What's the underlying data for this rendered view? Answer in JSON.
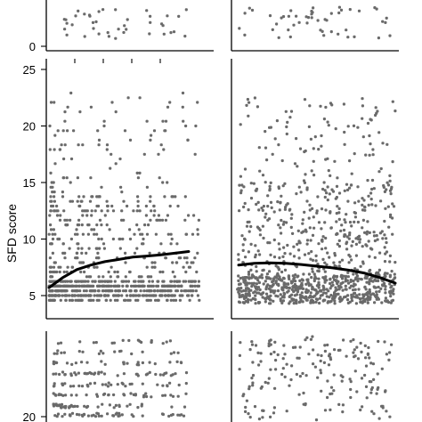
{
  "chart_data": {
    "type": "scatter",
    "ylabel": "SFD score",
    "grid": false,
    "panels": [
      {
        "id": "top-left",
        "y_tick_labels": [
          "0"
        ],
        "y_ticks": [
          0
        ],
        "point_count": 40,
        "y_value_range": [
          0.6,
          4.2
        ]
      },
      {
        "id": "top-right",
        "y_tick_labels": [],
        "point_count": 50,
        "y_value_range": [
          0.8,
          4.4
        ]
      },
      {
        "id": "middle-left",
        "ylim": [
          4,
          25.5
        ],
        "y_tick_labels": [
          "5",
          "10",
          "15",
          "20",
          "25"
        ],
        "y_ticks": [
          5,
          10,
          15,
          20,
          25
        ],
        "point_count": 950,
        "y_value_range": [
          4.6,
          23
        ],
        "fit_curve": {
          "x": [
            0,
            0.1,
            0.2,
            0.3,
            0.4,
            0.5,
            0.6,
            0.7,
            0.8,
            0.9,
            1.0
          ],
          "y": [
            5.7,
            6.6,
            7.3,
            7.7,
            8.0,
            8.2,
            8.4,
            8.5,
            8.6,
            8.75,
            8.9
          ]
        }
      },
      {
        "id": "middle-right",
        "ylim": [
          4,
          25.5
        ],
        "y_tick_labels": [],
        "point_count": 1050,
        "y_value_range": [
          4.2,
          22.5
        ],
        "fit_curve": {
          "x": [
            0,
            0.1,
            0.2,
            0.3,
            0.4,
            0.5,
            0.6,
            0.7,
            0.8,
            0.9,
            1.0
          ],
          "y": [
            7.7,
            7.85,
            7.9,
            7.85,
            7.75,
            7.6,
            7.45,
            7.25,
            7.0,
            6.6,
            6.1
          ]
        }
      },
      {
        "id": "bottom-left",
        "y_tick_labels": [
          "20"
        ],
        "y_ticks": [
          20
        ],
        "point_count": 260
      },
      {
        "id": "bottom-right",
        "y_tick_labels": [],
        "point_count": 180
      }
    ]
  }
}
